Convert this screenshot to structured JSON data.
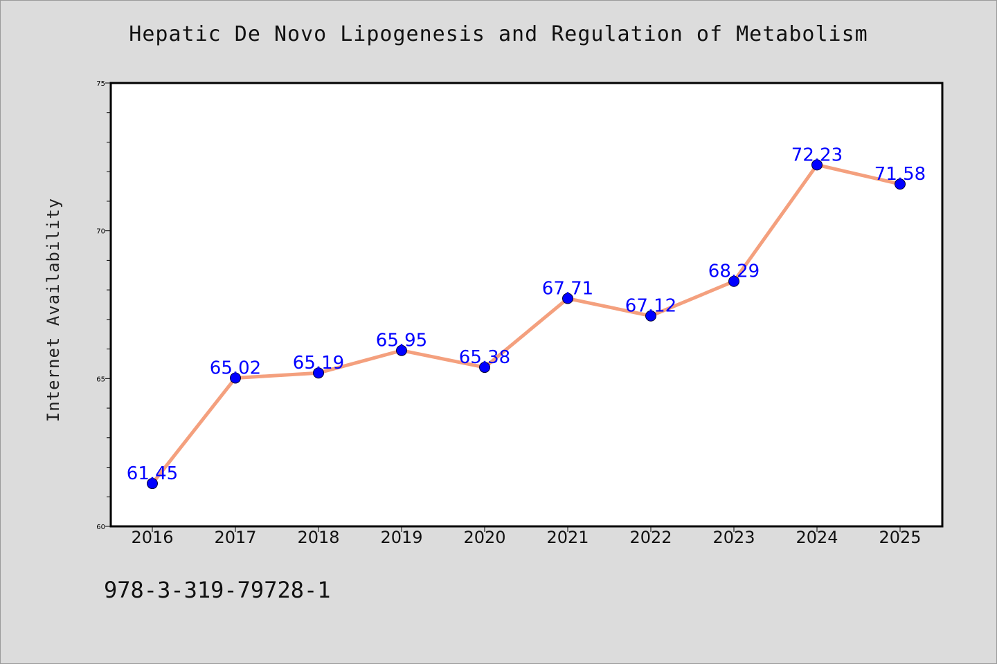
{
  "title": "Hepatic De Novo Lipogenesis and Regulation of Metabolism",
  "footer_text": "978-3-319-79728-1",
  "colors": {
    "background": "#dcdcdc",
    "plot_background": "#ffffff",
    "line": "#f4a07e",
    "marker": "#0000ff",
    "data_label": "#0000ff"
  },
  "chart_data": {
    "type": "line",
    "title": "Hepatic De Novo Lipogenesis and Regulation of Metabolism",
    "xlabel": "",
    "ylabel": "Internet Availability",
    "x": [
      "2016",
      "2017",
      "2018",
      "2019",
      "2020",
      "2021",
      "2022",
      "2023",
      "2024",
      "2025"
    ],
    "series": [
      {
        "values": [
          61.45,
          65.02,
          65.19,
          65.95,
          65.38,
          67.71,
          67.12,
          68.29,
          72.23,
          71.58
        ],
        "labels": [
          "61.45",
          "65.02",
          "65.19",
          "65.95",
          "65.38",
          "67.71",
          "67.12",
          "68.29",
          "72.23",
          "71.58"
        ]
      }
    ],
    "ylim": [
      60,
      75
    ],
    "yticks": [
      "60",
      "65",
      "70",
      "75"
    ],
    "grid": false,
    "legend": "none"
  }
}
